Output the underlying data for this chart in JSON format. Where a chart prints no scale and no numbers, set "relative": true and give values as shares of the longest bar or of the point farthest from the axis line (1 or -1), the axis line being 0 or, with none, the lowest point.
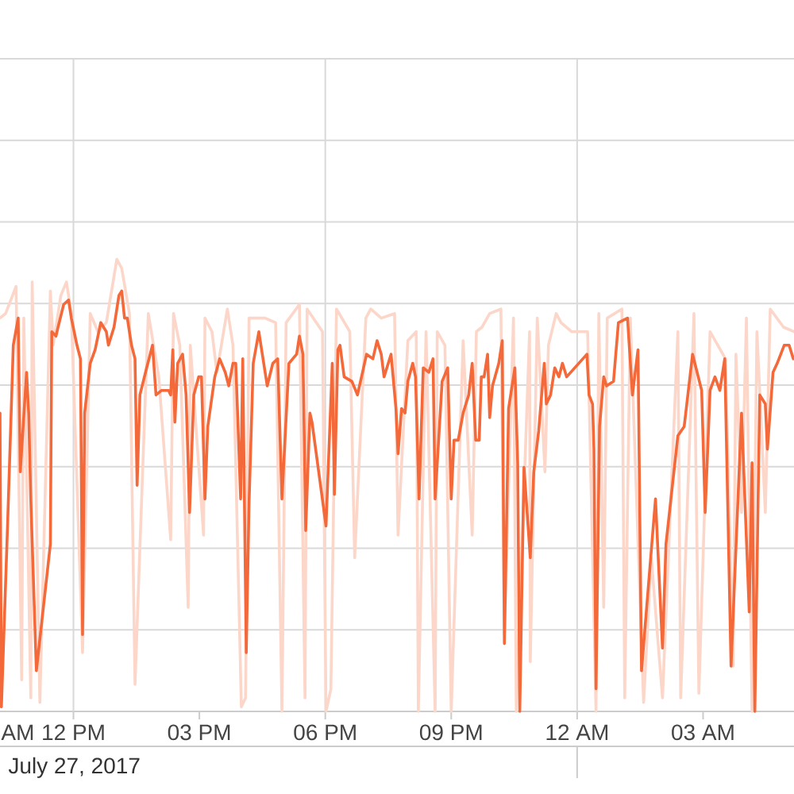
{
  "chart_data": {
    "type": "line",
    "relative": true,
    "xlabel": "July 27, 2017",
    "annotations": [
      "AM"
    ],
    "xlim": [
      "2017-07-27T10:15",
      "2017-07-28T05:10"
    ],
    "xticks": [
      {
        "value": "2017-07-27T12:00",
        "label": "12 PM"
      },
      {
        "value": "2017-07-27T15:00",
        "label": "03 PM"
      },
      {
        "value": "2017-07-27T18:00",
        "label": "06 PM"
      },
      {
        "value": "2017-07-27T21:00",
        "label": "09 PM"
      },
      {
        "value": "2017-07-28T00:00",
        "label": "12 AM"
      },
      {
        "value": "2017-07-28T03:00",
        "label": "03 AM"
      }
    ],
    "grid": true,
    "series": [
      {
        "color": "#fcd6c9",
        "x": [
          "2017-07-27T10:15",
          "2017-07-27T10:23",
          "2017-07-27T10:38",
          "2017-07-27T10:46",
          "2017-07-27T10:49",
          "2017-07-27T10:59",
          "2017-07-27T11:01",
          "2017-07-27T11:12",
          "2017-07-27T11:27",
          "2017-07-27T11:31",
          "2017-07-27T11:42",
          "2017-07-27T11:50",
          "2017-07-27T11:57",
          "2017-07-27T12:13",
          "2017-07-27T12:24",
          "2017-07-27T12:35",
          "2017-07-27T12:47",
          "2017-07-27T13:02",
          "2017-07-27T13:09",
          "2017-07-27T13:20",
          "2017-07-27T13:28",
          "2017-07-27T13:47",
          "2017-07-27T14:02",
          "2017-07-27T14:19",
          "2017-07-27T14:23",
          "2017-07-27T14:32",
          "2017-07-27T14:44",
          "2017-07-27T14:47",
          "2017-07-27T15:06",
          "2017-07-27T15:08",
          "2017-07-27T15:18",
          "2017-07-27T15:25",
          "2017-07-27T15:40",
          "2017-07-27T15:48",
          "2017-07-27T16:00",
          "2017-07-27T16:06",
          "2017-07-27T16:11",
          "2017-07-27T16:19",
          "2017-07-27T16:26",
          "2017-07-27T16:34",
          "2017-07-27T16:49",
          "2017-07-27T16:58",
          "2017-07-27T17:04",
          "2017-07-27T17:23",
          "2017-07-27T17:31",
          "2017-07-27T17:34",
          "2017-07-27T17:56",
          "2017-07-27T18:01",
          "2017-07-27T18:08",
          "2017-07-27T18:16",
          "2017-07-27T18:35",
          "2017-07-27T18:42",
          "2017-07-27T18:58",
          "2017-07-27T19:05",
          "2017-07-27T19:20",
          "2017-07-27T19:39",
          "2017-07-27T19:44",
          "2017-07-27T19:58",
          "2017-07-27T20:10",
          "2017-07-27T20:13",
          "2017-07-27T20:24",
          "2017-07-27T20:37",
          "2017-07-27T20:40",
          "2017-07-27T20:51",
          "2017-07-27T21:00",
          "2017-07-27T21:17",
          "2017-07-27T21:30",
          "2017-07-27T21:36",
          "2017-07-27T21:44",
          "2017-07-27T21:55",
          "2017-07-27T22:11",
          "2017-07-27T22:16",
          "2017-07-27T22:29",
          "2017-07-27T22:33",
          "2017-07-27T22:52",
          "2017-07-27T22:53",
          "2017-07-27T23:03",
          "2017-07-27T23:14",
          "2017-07-27T23:19",
          "2017-07-27T23:30",
          "2017-07-27T23:37",
          "2017-07-27T23:52",
          "2017-07-28T00:15",
          "2017-07-28T00:27",
          "2017-07-28T00:31",
          "2017-07-28T00:38",
          "2017-07-28T00:43",
          "2017-07-28T01:04",
          "2017-07-28T01:08",
          "2017-07-28T01:16",
          "2017-07-28T01:35",
          "2017-07-28T01:46",
          "2017-07-28T02:02",
          "2017-07-28T02:24",
          "2017-07-28T02:28",
          "2017-07-28T02:47",
          "2017-07-28T02:54",
          "2017-07-28T03:10",
          "2017-07-28T03:32",
          "2017-07-28T03:43",
          "2017-07-28T03:47",
          "2017-07-28T03:55",
          "2017-07-28T04:02",
          "2017-07-28T04:10",
          "2017-07-28T04:17",
          "2017-07-28T04:29",
          "2017-07-28T04:36",
          "2017-07-28T04:55",
          "2017-07-28T05:10"
        ],
        "values": [
          0.87,
          0.88,
          0.94,
          0.07,
          0.87,
          0.03,
          0.95,
          0.02,
          0.93,
          0.81,
          0.92,
          0.95,
          0.88,
          0.13,
          0.88,
          0.84,
          0.86,
          1.0,
          0.98,
          0.88,
          0.06,
          0.88,
          0.74,
          0.38,
          0.88,
          0.81,
          0.23,
          0.81,
          0.39,
          0.87,
          0.84,
          0.75,
          0.89,
          0.81,
          0.01,
          0.03,
          0.87,
          0.87,
          0.87,
          0.87,
          0.86,
          0.0,
          0.86,
          0.9,
          0.03,
          0.89,
          0.84,
          0.0,
          0.05,
          0.89,
          0.84,
          0.34,
          0.87,
          0.89,
          0.87,
          0.88,
          0.39,
          0.82,
          0.84,
          0.0,
          0.84,
          0.0,
          0.84,
          0.81,
          0.0,
          0.82,
          0.39,
          0.84,
          0.85,
          0.88,
          0.89,
          0.17,
          0.87,
          0.0,
          0.84,
          0.11,
          0.87,
          0.53,
          0.81,
          0.88,
          0.86,
          0.84,
          0.84,
          0.0,
          0.88,
          0.23,
          0.87,
          0.89,
          0.03,
          0.87,
          0.02,
          0.34,
          0.03,
          0.84,
          0.03,
          0.88,
          0.04,
          0.84,
          0.78,
          0.1,
          0.79,
          0.44,
          0.87,
          0.0,
          0.84,
          0.44,
          0.89,
          0.85,
          0.84
        ]
      },
      {
        "color": "#f4693a",
        "x": [
          "2017-07-27T10:15",
          "2017-07-27T10:17",
          "2017-07-27T10:26",
          "2017-07-27T10:34",
          "2017-07-27T10:41",
          "2017-07-27T10:44",
          "2017-07-27T10:53",
          "2017-07-27T10:56",
          "2017-07-27T10:59",
          "2017-07-27T11:07",
          "2017-07-27T11:27",
          "2017-07-27T11:29",
          "2017-07-27T11:35",
          "2017-07-27T11:38",
          "2017-07-27T11:46",
          "2017-07-27T11:53",
          "2017-07-27T11:57",
          "2017-07-27T12:05",
          "2017-07-27T12:10",
          "2017-07-27T12:13",
          "2017-07-27T12:16",
          "2017-07-27T12:24",
          "2017-07-27T12:31",
          "2017-07-27T12:39",
          "2017-07-27T12:47",
          "2017-07-27T12:50",
          "2017-07-27T12:58",
          "2017-07-27T13:05",
          "2017-07-27T13:09",
          "2017-07-27T13:13",
          "2017-07-27T13:17",
          "2017-07-27T13:23",
          "2017-07-27T13:28",
          "2017-07-27T13:31",
          "2017-07-27T13:35",
          "2017-07-27T13:43",
          "2017-07-27T13:53",
          "2017-07-27T13:58",
          "2017-07-27T14:06",
          "2017-07-27T14:16",
          "2017-07-27T14:19",
          "2017-07-27T14:22",
          "2017-07-27T14:25",
          "2017-07-27T14:29",
          "2017-07-27T14:36",
          "2017-07-27T14:41",
          "2017-07-27T14:46",
          "2017-07-27T14:52",
          "2017-07-27T14:59",
          "2017-07-27T15:03",
          "2017-07-27T15:08",
          "2017-07-27T15:12",
          "2017-07-27T15:22",
          "2017-07-27T15:29",
          "2017-07-27T15:37",
          "2017-07-27T15:42",
          "2017-07-27T15:48",
          "2017-07-27T15:52",
          "2017-07-27T15:59",
          "2017-07-27T16:02",
          "2017-07-27T16:07",
          "2017-07-27T16:11",
          "2017-07-27T16:17",
          "2017-07-27T16:25",
          "2017-07-27T16:30",
          "2017-07-27T16:37",
          "2017-07-27T16:45",
          "2017-07-27T16:52",
          "2017-07-27T16:58",
          "2017-07-27T17:08",
          "2017-07-27T17:19",
          "2017-07-27T17:23",
          "2017-07-27T17:28",
          "2017-07-27T17:31",
          "2017-07-27T17:32",
          "2017-07-27T17:38",
          "2017-07-27T17:41",
          "2017-07-27T18:01",
          "2017-07-27T18:10",
          "2017-07-27T18:13",
          "2017-07-27T18:18",
          "2017-07-27T18:21",
          "2017-07-27T18:27",
          "2017-07-27T18:38",
          "2017-07-27T18:46",
          "2017-07-27T18:59",
          "2017-07-27T19:08",
          "2017-07-27T19:14",
          "2017-07-27T19:20",
          "2017-07-27T19:24",
          "2017-07-27T19:34",
          "2017-07-27T19:41",
          "2017-07-27T19:44",
          "2017-07-27T19:49",
          "2017-07-27T19:54",
          "2017-07-27T19:58",
          "2017-07-27T20:05",
          "2017-07-27T20:09",
          "2017-07-27T20:14",
          "2017-07-27T20:20",
          "2017-07-27T20:28",
          "2017-07-27T20:34",
          "2017-07-27T20:37",
          "2017-07-27T20:47",
          "2017-07-27T20:55",
          "2017-07-27T21:00",
          "2017-07-27T21:04",
          "2017-07-27T21:10",
          "2017-07-27T21:17",
          "2017-07-27T21:25",
          "2017-07-27T21:30",
          "2017-07-27T21:35",
          "2017-07-27T21:40",
          "2017-07-27T21:43",
          "2017-07-27T21:47",
          "2017-07-27T21:52",
          "2017-07-27T21:55",
          "2017-07-27T21:59",
          "2017-07-27T22:08",
          "2017-07-27T22:13",
          "2017-07-27T22:16",
          "2017-07-27T22:22",
          "2017-07-27T22:31",
          "2017-07-27T22:35",
          "2017-07-27T22:38",
          "2017-07-27T22:44",
          "2017-07-27T22:53",
          "2017-07-27T22:58",
          "2017-07-27T23:05",
          "2017-07-27T23:13",
          "2017-07-27T23:16",
          "2017-07-27T23:22",
          "2017-07-27T23:28",
          "2017-07-27T23:34",
          "2017-07-27T23:39",
          "2017-07-27T23:45",
          "2017-07-28T00:14",
          "2017-07-28T00:17",
          "2017-07-28T00:22",
          "2017-07-28T00:24",
          "2017-07-28T00:27",
          "2017-07-28T00:32",
          "2017-07-28T00:38",
          "2017-07-28T00:42",
          "2017-07-28T00:52",
          "2017-07-28T00:59",
          "2017-07-28T01:12",
          "2017-07-28T01:19",
          "2017-07-28T01:27",
          "2017-07-28T01:32",
          "2017-07-28T01:52",
          "2017-07-28T02:02",
          "2017-07-28T02:07",
          "2017-07-28T02:24",
          "2017-07-28T02:33",
          "2017-07-28T02:45",
          "2017-07-28T02:58",
          "2017-07-28T03:03",
          "2017-07-28T03:10",
          "2017-07-28T03:17",
          "2017-07-28T03:24",
          "2017-07-28T03:31",
          "2017-07-28T03:40",
          "2017-07-28T03:55",
          "2017-07-28T04:06",
          "2017-07-28T04:10",
          "2017-07-28T04:14",
          "2017-07-28T04:21",
          "2017-07-28T04:29",
          "2017-07-28T04:32",
          "2017-07-28T04:40",
          "2017-07-28T04:46",
          "2017-07-28T04:56",
          "2017-07-28T05:03",
          "2017-07-28T05:09"
        ],
        "values": [
          0.66,
          0.01,
          0.42,
          0.81,
          0.87,
          0.53,
          0.75,
          0.66,
          0.47,
          0.09,
          0.37,
          0.84,
          0.83,
          0.85,
          0.9,
          0.91,
          0.87,
          0.81,
          0.78,
          0.17,
          0.66,
          0.77,
          0.8,
          0.86,
          0.84,
          0.81,
          0.85,
          0.92,
          0.93,
          0.87,
          0.87,
          0.81,
          0.78,
          0.5,
          0.7,
          0.75,
          0.81,
          0.7,
          0.71,
          0.71,
          0.7,
          0.8,
          0.64,
          0.77,
          0.79,
          0.7,
          0.44,
          0.7,
          0.74,
          0.74,
          0.47,
          0.63,
          0.74,
          0.78,
          0.75,
          0.72,
          0.77,
          0.77,
          0.47,
          0.78,
          0.13,
          0.46,
          0.77,
          0.84,
          0.79,
          0.72,
          0.77,
          0.78,
          0.47,
          0.77,
          0.79,
          0.83,
          0.79,
          0.5,
          0.4,
          0.66,
          0.64,
          0.41,
          0.77,
          0.48,
          0.8,
          0.81,
          0.74,
          0.73,
          0.7,
          0.79,
          0.78,
          0.82,
          0.79,
          0.74,
          0.79,
          0.67,
          0.57,
          0.67,
          0.66,
          0.73,
          0.77,
          0.74,
          0.47,
          0.76,
          0.75,
          0.78,
          0.47,
          0.73,
          0.76,
          0.47,
          0.6,
          0.6,
          0.66,
          0.7,
          0.77,
          0.6,
          0.6,
          0.74,
          0.74,
          0.79,
          0.65,
          0.72,
          0.77,
          0.82,
          0.15,
          0.67,
          0.76,
          0.55,
          0.0,
          0.54,
          0.34,
          0.53,
          0.62,
          0.77,
          0.68,
          0.7,
          0.76,
          0.74,
          0.77,
          0.74,
          0.79,
          0.7,
          0.68,
          0.58,
          0.05,
          0.63,
          0.74,
          0.72,
          0.73,
          0.86,
          0.87,
          0.7,
          0.8,
          0.09,
          0.47,
          0.14,
          0.37,
          0.61,
          0.63,
          0.79,
          0.71,
          0.44,
          0.71,
          0.74,
          0.71,
          0.78,
          0.1,
          0.66,
          0.22,
          0.55,
          0.0,
          0.7,
          0.68,
          0.58,
          0.75,
          0.77,
          0.81,
          0.81,
          0.78
        ]
      }
    ]
  }
}
